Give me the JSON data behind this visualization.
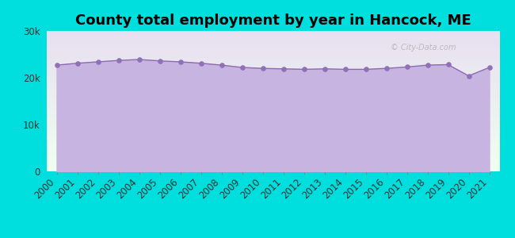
{
  "title": "County total employment by year in Hancock, ME",
  "background_color": "#00dede",
  "plot_bg_top": "#f0fff0",
  "plot_bg_bottom": "#e8e0f0",
  "fill_color": "#c8b4e0",
  "line_color": "#8b6ab0",
  "marker_color": "#9070b8",
  "years": [
    2000,
    2001,
    2002,
    2003,
    2004,
    2005,
    2006,
    2007,
    2008,
    2009,
    2010,
    2011,
    2012,
    2013,
    2014,
    2015,
    2016,
    2017,
    2018,
    2019,
    2020,
    2021
  ],
  "values": [
    22700,
    23100,
    23400,
    23700,
    23900,
    23600,
    23400,
    23100,
    22700,
    22200,
    22000,
    21900,
    21800,
    21900,
    21800,
    21800,
    22000,
    22300,
    22700,
    22800,
    20400,
    22200
  ],
  "ylim": [
    0,
    30000
  ],
  "yticks": [
    0,
    10000,
    20000,
    30000
  ],
  "ytick_labels": [
    "0",
    "10k",
    "20k",
    "30k"
  ],
  "title_fontsize": 13,
  "tick_fontsize": 8.5
}
